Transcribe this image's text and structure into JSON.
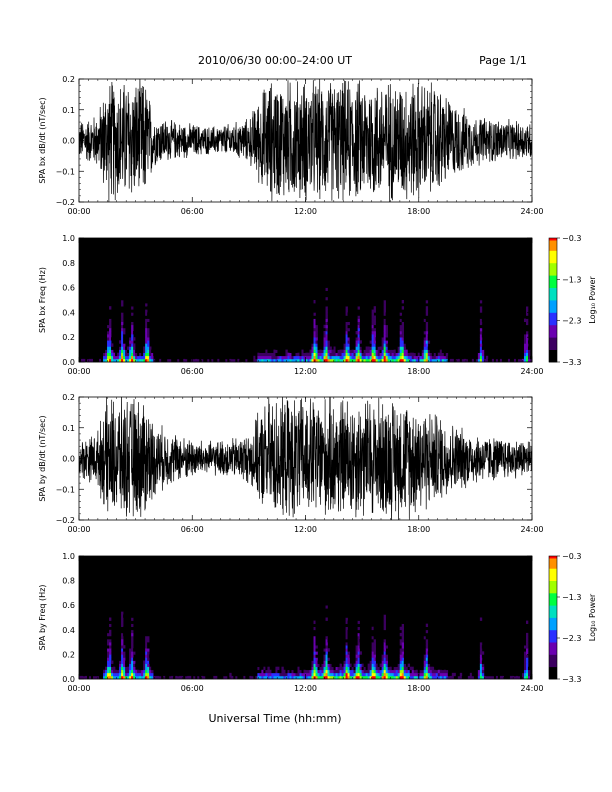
{
  "header": {
    "title": "2010/06/30  00:00–24:00 UT",
    "page": "Page 1/1"
  },
  "colors": {
    "background": "#ffffff",
    "ink": "#000000",
    "colormap": [
      "#000000",
      "#3c0060",
      "#6a00b0",
      "#2a30ff",
      "#00a0ff",
      "#00e0c0",
      "#00ff40",
      "#a0ff00",
      "#ffff00",
      "#ff9000",
      "#ff0000"
    ]
  },
  "chart_data": [
    {
      "type": "line",
      "series": [
        {
          "values_note_omitted": true
        }
      ],
      "ylabel": "SPA bx dB/dt (nT/sec)",
      "xlim": [
        0,
        24
      ],
      "ylim": [
        -0.2,
        0.2
      ],
      "x_ticks": [
        "00:00",
        "06:00",
        "12:00",
        "18:00",
        "24:00"
      ],
      "y_ticks": [
        "−0.2",
        "−0.1",
        "0.0",
        "0.1",
        "0.2"
      ],
      "envelope": {
        "x": [
          0,
          0.5,
          1.0,
          1.5,
          2.0,
          3.0,
          3.5,
          4.0,
          5.0,
          6.0,
          7.0,
          8.0,
          9.0,
          10.0,
          11.0,
          12.0,
          13.0,
          14.0,
          15.0,
          16.0,
          17.0,
          18.0,
          19.0,
          20.0,
          21.0,
          22.0,
          23.0,
          24.0
        ],
        "amp": [
          0.07,
          0.08,
          0.1,
          0.22,
          0.22,
          0.22,
          0.22,
          0.09,
          0.07,
          0.06,
          0.05,
          0.06,
          0.08,
          0.22,
          0.22,
          0.22,
          0.22,
          0.22,
          0.22,
          0.22,
          0.22,
          0.22,
          0.2,
          0.13,
          0.09,
          0.08,
          0.07,
          0.07
        ]
      }
    },
    {
      "type": "heatmap",
      "ylabel": "SPA bx Freq (Hz)",
      "xlim": [
        0,
        24
      ],
      "ylim": [
        0,
        1.0
      ],
      "x_ticks": [
        "00:00",
        "06:00",
        "12:00",
        "18:00",
        "24:00"
      ],
      "y_ticks": [
        "0.0",
        "0.2",
        "0.4",
        "0.6",
        "0.8",
        "1.0"
      ],
      "colorbar": {
        "label": "Log₁₀ Power",
        "range": [
          -3.3,
          -0.3
        ],
        "ticks": [
          "−0.3",
          "−1.3",
          "−2.3",
          "−3.3"
        ]
      },
      "bursts_hours": [
        1.6,
        2.3,
        2.8,
        3.6,
        12.5,
        13.1,
        14.2,
        14.8,
        15.6,
        16.2,
        17.1,
        18.4,
        21.3,
        23.7
      ]
    },
    {
      "type": "line",
      "ylabel": "SPA by dB/dt (nT/sec)",
      "xlim": [
        0,
        24
      ],
      "ylim": [
        -0.2,
        0.2
      ],
      "x_ticks": [
        "00:00",
        "06:00",
        "12:00",
        "18:00",
        "24:00"
      ],
      "y_ticks": [
        "−0.2",
        "−0.1",
        "0.0",
        "0.1",
        "0.2"
      ],
      "envelope": {
        "x": [
          0,
          0.5,
          1.0,
          1.5,
          2.0,
          3.0,
          3.5,
          4.0,
          5.0,
          6.0,
          7.0,
          8.0,
          9.0,
          10.0,
          11.0,
          12.0,
          13.0,
          14.0,
          15.0,
          16.0,
          17.0,
          18.0,
          19.0,
          20.0,
          21.0,
          22.0,
          23.0,
          24.0
        ],
        "amp": [
          0.07,
          0.08,
          0.1,
          0.22,
          0.22,
          0.22,
          0.22,
          0.13,
          0.09,
          0.07,
          0.06,
          0.07,
          0.09,
          0.22,
          0.22,
          0.22,
          0.22,
          0.22,
          0.22,
          0.22,
          0.22,
          0.2,
          0.16,
          0.12,
          0.09,
          0.08,
          0.07,
          0.07
        ]
      }
    },
    {
      "type": "heatmap",
      "ylabel": "SPA by Freq (Hz)",
      "xlim": [
        0,
        24
      ],
      "ylim": [
        0,
        1.0
      ],
      "x_ticks": [
        "00:00",
        "06:00",
        "12:00",
        "18:00",
        "24:00"
      ],
      "y_ticks": [
        "0.0",
        "0.2",
        "0.4",
        "0.6",
        "0.8",
        "1.0"
      ],
      "colorbar": {
        "label": "Log₁₀ Power",
        "range": [
          -3.3,
          -0.3
        ],
        "ticks": [
          "−0.3",
          "−1.3",
          "−2.3",
          "−3.3"
        ]
      },
      "bursts_hours": [
        1.6,
        2.3,
        2.8,
        3.6,
        12.5,
        13.1,
        14.2,
        14.8,
        15.6,
        16.2,
        17.1,
        18.4,
        21.3,
        23.7
      ]
    }
  ],
  "footer": {
    "xlabel": "Universal Time (hh:mm)"
  }
}
